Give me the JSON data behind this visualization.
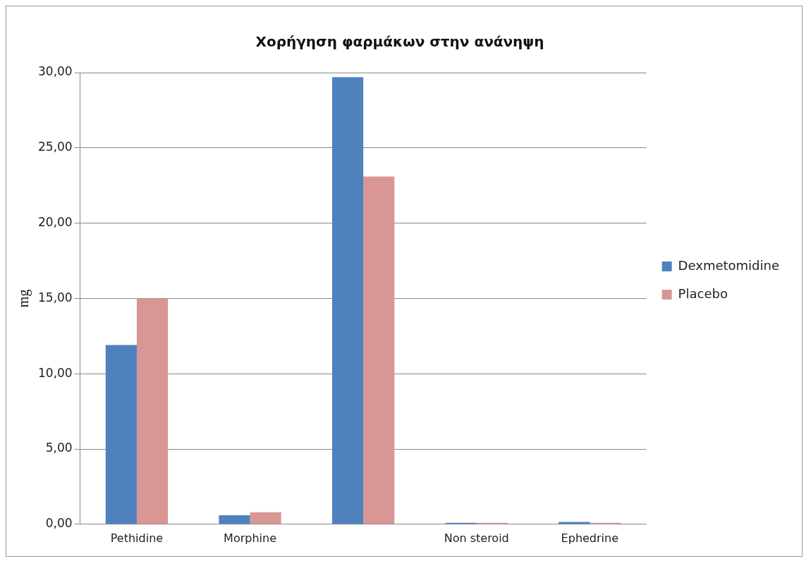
{
  "chart_data": {
    "type": "bar",
    "title": "Χορήγηση φαρμάκων στην ανάνηψη",
    "ylabel": "mg",
    "categories": [
      "Pethidine",
      "Morphine",
      null,
      "Non steroid",
      "Ephedrine"
    ],
    "series": [
      {
        "name": "Dexmetomidine",
        "color": "#4f81bd",
        "values": [
          11.9,
          0.6,
          29.7,
          0.1,
          0.15
        ]
      },
      {
        "name": "Placebo",
        "color": "#d99694",
        "values": [
          15,
          0.8,
          23.1,
          0.1,
          0.1
        ]
      }
    ],
    "ylim": [
      0,
      30
    ],
    "yticks": [
      {
        "value": 0,
        "label": "0,00"
      },
      {
        "value": 5,
        "label": "5,00"
      },
      {
        "value": 10,
        "label": "10,00"
      },
      {
        "value": 15,
        "label": "15,00"
      },
      {
        "value": 20,
        "label": "20,00"
      },
      {
        "value": 25,
        "label": "25,00"
      },
      {
        "value": 30,
        "label": "30,00"
      }
    ],
    "grid": "y",
    "legend": "right"
  }
}
